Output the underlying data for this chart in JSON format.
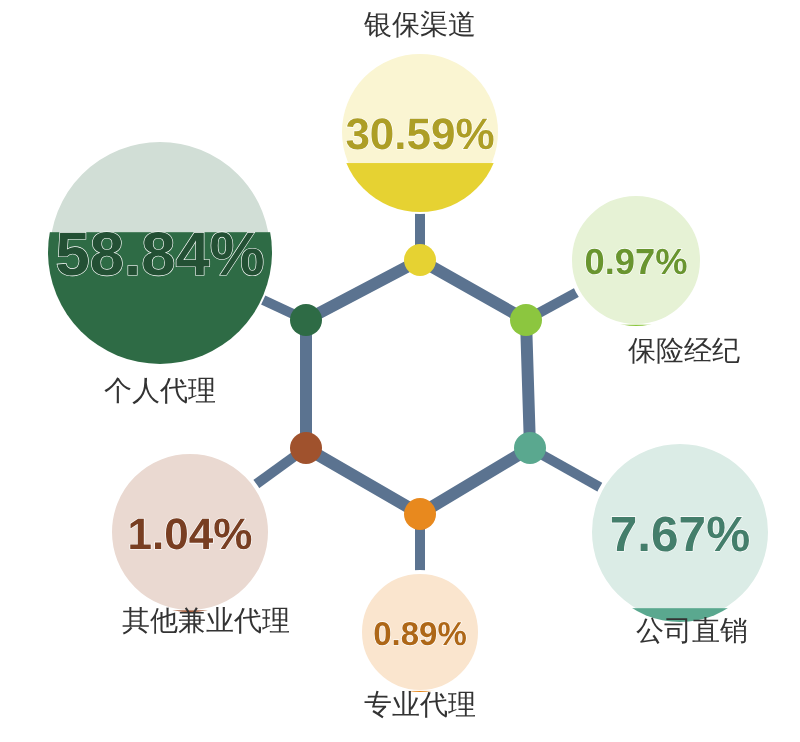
{
  "chart_data": {
    "type": "other",
    "categories": [
      "银保渠道",
      "保险经纪",
      "公司直销",
      "专业代理",
      "其他兼业代理",
      "个人代理"
    ],
    "values": [
      30.59,
      0.97,
      7.67,
      0.89,
      1.04,
      58.84
    ],
    "value_labels": [
      "30.59%",
      "0.97%",
      "7.67%",
      "0.89%",
      "1.04%",
      "58.84%"
    ],
    "colors": [
      "#e6d232",
      "#8cc63f",
      "#5aa88f",
      "#e8891e",
      "#a0522d",
      "#2e6b45"
    ]
  }
}
